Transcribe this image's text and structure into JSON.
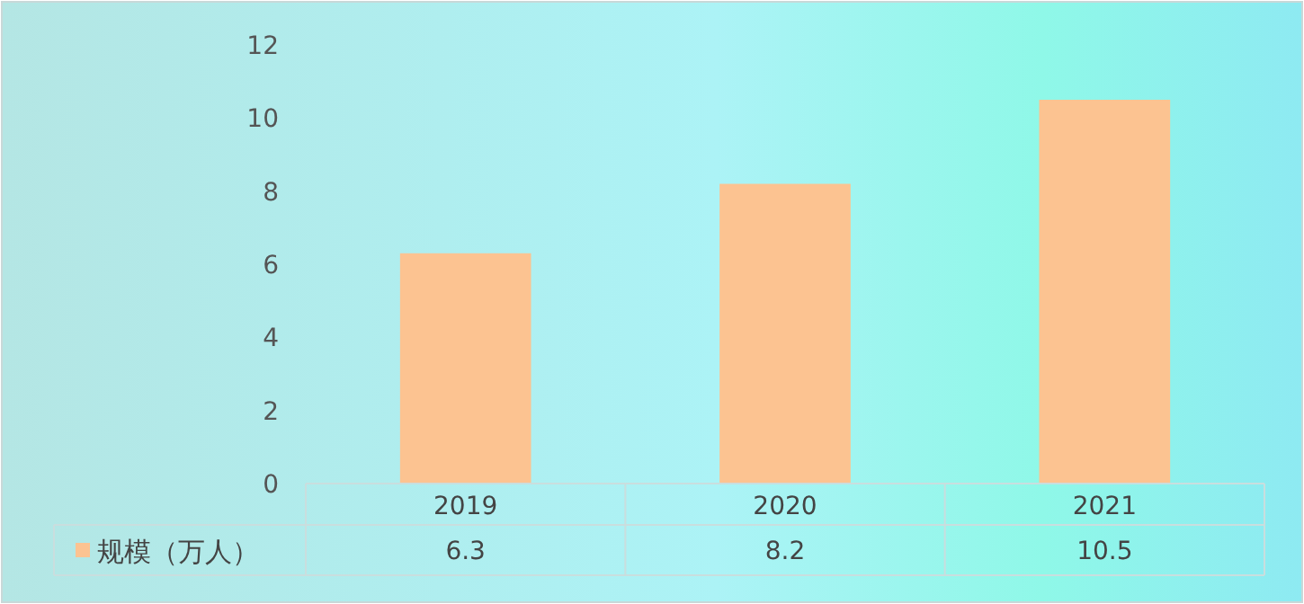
{
  "chart_data": {
    "type": "bar",
    "categories": [
      "2019",
      "2020",
      "2021"
    ],
    "series": [
      {
        "name": "规模（万人）",
        "color": "#fcc391",
        "values": [
          6.3,
          8.2,
          10.5
        ]
      }
    ],
    "ylim": [
      0,
      12
    ],
    "yticks": [
      0,
      2,
      4,
      6,
      8,
      10,
      12
    ],
    "data_labels": true,
    "legend": "bottom",
    "grid": false
  }
}
